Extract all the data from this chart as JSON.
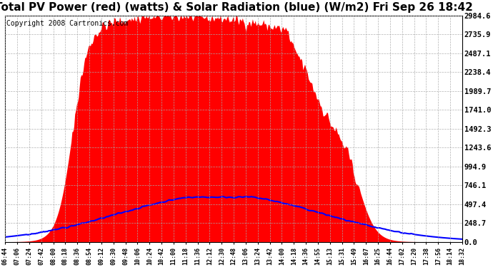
{
  "title": "Total PV Power (red) (watts) & Solar Radiation (blue) (W/m2) Fri Sep 26 18:42",
  "copyright_text": "Copyright 2008 Cartronics.com",
  "y_tick_labels": [
    "0.0",
    "248.7",
    "497.4",
    "746.1",
    "994.9",
    "1243.6",
    "1492.3",
    "1741.0",
    "1989.7",
    "2238.4",
    "2487.1",
    "2735.9",
    "2984.6"
  ],
  "y_max": 2984.6,
  "y_min": 0.0,
  "x_labels": [
    "06:44",
    "07:06",
    "07:24",
    "07:42",
    "08:00",
    "08:18",
    "08:36",
    "08:54",
    "09:12",
    "09:30",
    "09:48",
    "10:06",
    "10:24",
    "10:42",
    "11:00",
    "11:18",
    "11:36",
    "12:12",
    "12:30",
    "12:48",
    "13:06",
    "13:24",
    "13:42",
    "14:00",
    "14:18",
    "14:36",
    "14:55",
    "15:13",
    "15:31",
    "15:49",
    "16:07",
    "16:25",
    "16:44",
    "17:02",
    "17:20",
    "17:38",
    "17:56",
    "18:14",
    "18:32"
  ],
  "bg_color": "#ffffff",
  "plot_bg_color": "#ffffff",
  "grid_color": "#aaaaaa",
  "fill_color_pv": "#ff0000",
  "line_color_solar": "#0000ff",
  "title_fontsize": 11,
  "copyright_fontsize": 7,
  "pv_max": 2984.6,
  "solar_max": 620.0
}
